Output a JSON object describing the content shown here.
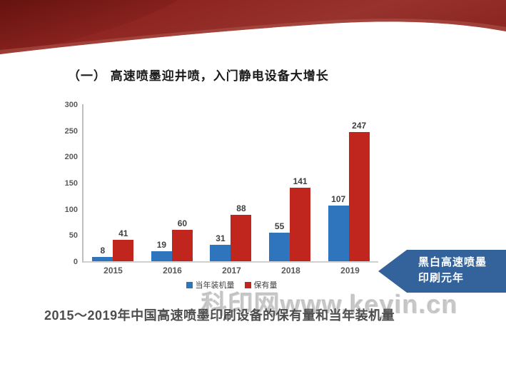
{
  "slide": {
    "title": "（一） 高速喷墨迎井喷，入门静电设备大增长",
    "caption": "2015～2019年中国高速喷墨印刷设备的保有量和当年装机量",
    "watermark": "科印网www.keyin.cn",
    "callout": {
      "line1": "黑白高速喷墨",
      "line2": "印刷元年"
    }
  },
  "colors": {
    "bar_blue": "#2e75be",
    "bar_red": "#c0261d",
    "callout_bg": "#34639b",
    "ribbon_dark": "#6e1512",
    "ribbon_mid": "#8e2521",
    "ribbon_light": "#a63e35",
    "axis_text": "#595959",
    "value_text": "#3f3f3f"
  },
  "chart_data": {
    "type": "bar",
    "title": "",
    "xlabel": "",
    "ylabel": "",
    "categories": [
      "2015",
      "2016",
      "2017",
      "2018",
      "2019"
    ],
    "series": [
      {
        "name": "当年装机量",
        "color": "#2e75be",
        "values": [
          8,
          19,
          31,
          55,
          107
        ]
      },
      {
        "name": "保有量",
        "color": "#c0261d",
        "values": [
          41,
          60,
          88,
          141,
          247
        ]
      }
    ],
    "ylim": [
      0,
      300
    ],
    "yticks": [
      0,
      50,
      100,
      150,
      200,
      250,
      300
    ],
    "grid": false,
    "legend_position": "bottom"
  }
}
